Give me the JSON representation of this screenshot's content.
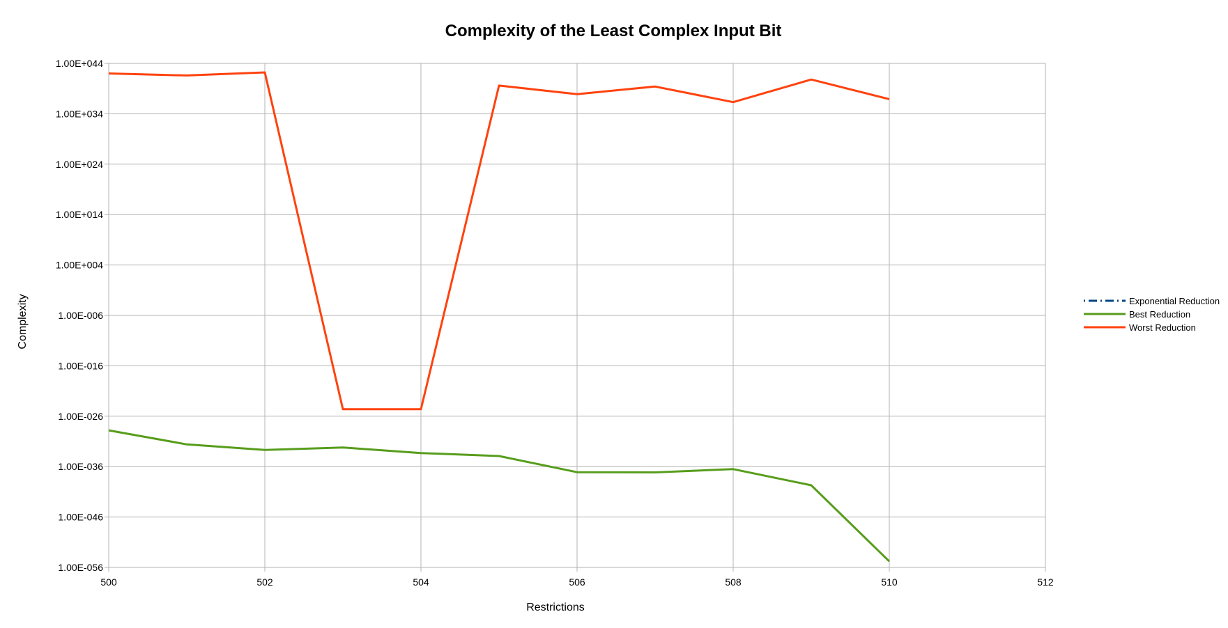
{
  "chart_data": {
    "type": "line",
    "title": "Complexity of the Least Complex Input Bit",
    "xlabel": "Restrictions",
    "ylabel": "Complexity",
    "xlim": [
      500,
      512
    ],
    "x_ticks": [
      500,
      502,
      504,
      506,
      508,
      510,
      512
    ],
    "x_tick_labels": [
      "500",
      "502",
      "504",
      "506",
      "508",
      "510",
      "512"
    ],
    "ylim_log10": [
      -56,
      44
    ],
    "y_scale": "log",
    "y_ticks_log10": [
      44,
      34,
      24,
      14,
      4,
      -6,
      -16,
      -26,
      -36,
      -46,
      -56
    ],
    "y_tick_labels": [
      "1.00E+044",
      "1.00E+034",
      "1.00E+024",
      "1.00E+014",
      "1.00E+004",
      "1.00E-006",
      "1.00E-016",
      "1.00E-026",
      "1.00E-036",
      "1.00E-046",
      "1.00E-056"
    ],
    "grid": true,
    "legend_position": "right",
    "series": [
      {
        "name": "Exponential Reduction",
        "color": "#004586",
        "style": "dash-dot",
        "x": [],
        "values_log10": []
      },
      {
        "name": "Best Reduction",
        "color": "#579d1c",
        "style": "solid",
        "x": [
          500,
          501,
          502,
          503,
          504,
          505,
          506,
          507,
          508,
          509,
          510
        ],
        "values_log10": [
          -28.8,
          -31.6,
          -32.7,
          -32.2,
          -33.3,
          -33.9,
          -37.1,
          -37.15,
          -36.5,
          -39.7,
          -54.8
        ]
      },
      {
        "name": "Worst Reduction",
        "color": "#ff420e",
        "style": "solid",
        "x": [
          500,
          501,
          502,
          503,
          504,
          505,
          506,
          507,
          508,
          509,
          510
        ],
        "values_log10": [
          42.0,
          41.6,
          42.2,
          -24.6,
          -24.6,
          39.6,
          37.9,
          39.4,
          36.3,
          40.8,
          36.9
        ]
      }
    ]
  }
}
